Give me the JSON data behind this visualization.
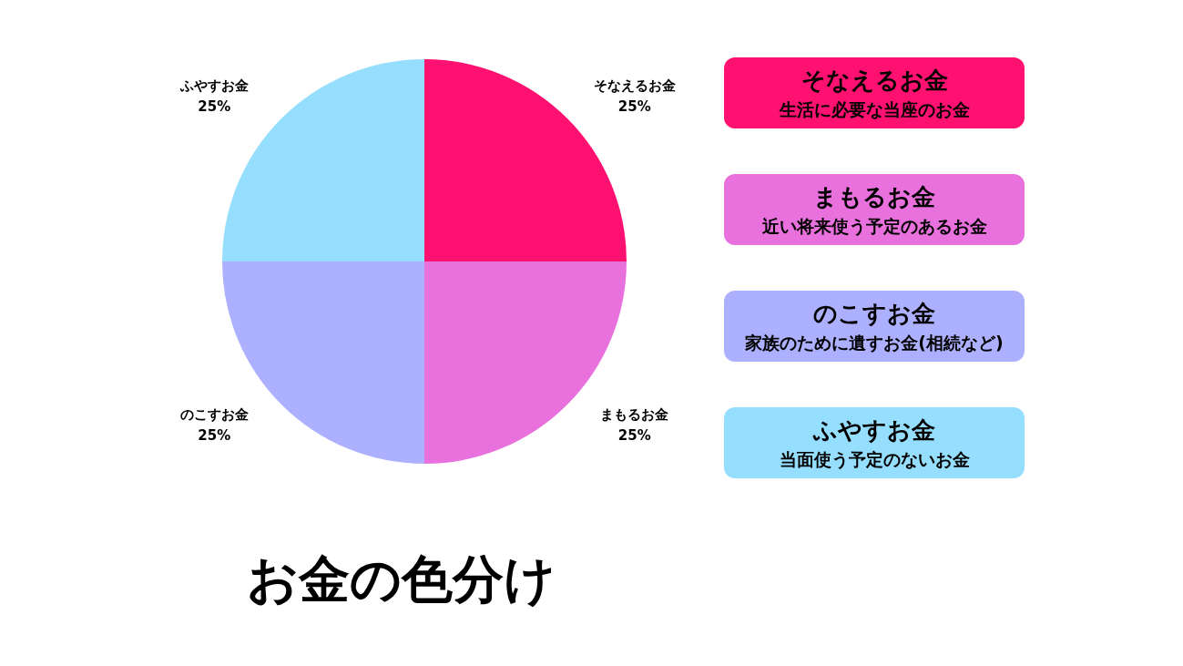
{
  "chart_data": {
    "type": "pie",
    "title": "お金の色分け",
    "categories": [
      "そなえるお金",
      "まもるお金",
      "のこすお金",
      "ふやすお金"
    ],
    "values": [
      25,
      25,
      25,
      25
    ],
    "value_labels": [
      "25%",
      "25%",
      "25%",
      "25%"
    ],
    "colors": [
      "#fe1170",
      "#e871dd",
      "#acb0fe",
      "#96defe"
    ],
    "annotations": [
      "生活に必要な当座のお金",
      "近い将来使う予定のあるお金",
      "家族のために遺すお金(相続など)",
      "当面使う予定のないお金"
    ]
  }
}
